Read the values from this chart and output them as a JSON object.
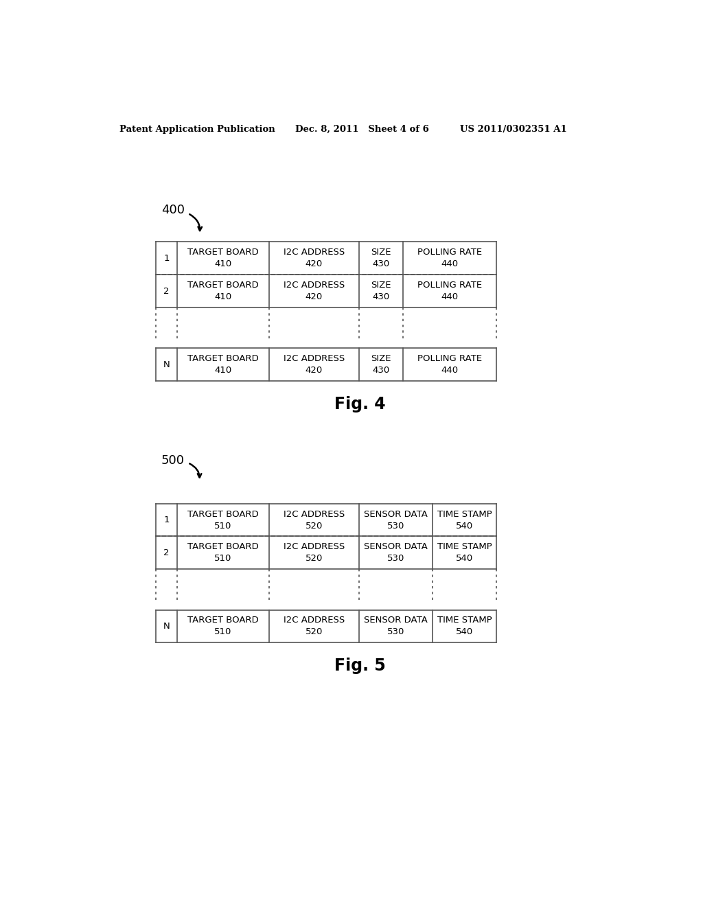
{
  "header_left": "Patent Application Publication",
  "header_mid": "Dec. 8, 2011   Sheet 4 of 6",
  "header_right": "US 2011/0302351 A1",
  "fig4_label": "400",
  "fig4_caption": "Fig. 4",
  "fig5_label": "500",
  "fig5_caption": "Fig. 5",
  "fig4_rows": [
    {
      "row_label": "1",
      "col1": "TARGET BOARD\n410",
      "col2": "I2C ADDRESS\n420",
      "col3": "SIZE\n430",
      "col4": "POLLING RATE\n440"
    },
    {
      "row_label": "2",
      "col1": "TARGET BOARD\n410",
      "col2": "I2C ADDRESS\n420",
      "col3": "SIZE\n430",
      "col4": "POLLING RATE\n440"
    },
    {
      "row_label": "N",
      "col1": "TARGET BOARD\n410",
      "col2": "I2C ADDRESS\n420",
      "col3": "SIZE\n430",
      "col4": "POLLING RATE\n440"
    }
  ],
  "fig5_rows": [
    {
      "row_label": "1",
      "col1": "TARGET BOARD\n510",
      "col2": "I2C ADDRESS\n520",
      "col3": "SENSOR DATA\n530",
      "col4": "TIME STAMP\n540"
    },
    {
      "row_label": "2",
      "col1": "TARGET BOARD\n510",
      "col2": "I2C ADDRESS\n520",
      "col3": "SENSOR DATA\n530",
      "col4": "TIME STAMP\n540"
    },
    {
      "row_label": "N",
      "col1": "TARGET BOARD\n510",
      "col2": "I2C ADDRESS\n520",
      "col3": "SENSOR DATA\n530",
      "col4": "TIME STAMP\n540"
    }
  ],
  "background_color": "#ffffff",
  "text_color": "#000000",
  "line_color": "#555555",
  "font_size_header": 9.5,
  "font_size_cell": 9.5,
  "font_size_caption": 17,
  "font_size_label": 13
}
